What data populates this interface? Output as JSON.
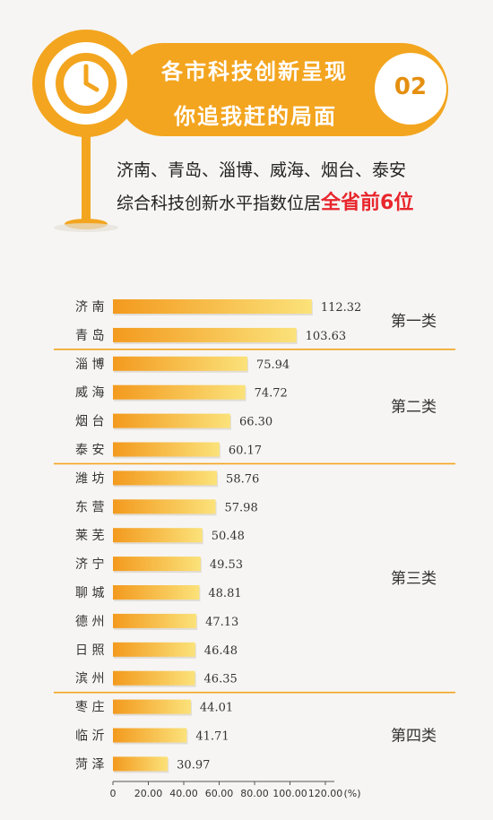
{
  "header": {
    "title_line1": "各市科技创新呈现",
    "title_line2": "你追我赶的局面",
    "number": "02",
    "subtitle_line1": "济南、青岛、淄博、威海、烟台、泰安",
    "subtitle_line2_prefix": "综合科技创新水平指数位居",
    "subtitle_line2_highlight": "全省前6位",
    "icon": "clock-icon"
  },
  "colors": {
    "accent": "#f3a51f",
    "accent_dark": "#e58f10",
    "bar_left": "#f39a1e",
    "bar_right": "#fbe27a",
    "highlight": "#e8262d"
  },
  "chart_data": {
    "type": "bar",
    "orientation": "horizontal",
    "categories": [
      "济南",
      "青岛",
      "淄博",
      "威海",
      "烟台",
      "泰安",
      "潍坊",
      "东营",
      "莱芜",
      "济宁",
      "聊城",
      "德州",
      "日照",
      "滨州",
      "枣庄",
      "临沂",
      "菏泽"
    ],
    "category_labels": [
      "济 南",
      "青 岛",
      "淄 博",
      "威 海",
      "烟 台",
      "泰 安",
      "潍 坊",
      "东 营",
      "莱 芜",
      "济 宁",
      "聊 城",
      "德 州",
      "日 照",
      "滨 州",
      "枣 庄",
      "临 沂",
      "菏 泽"
    ],
    "values": [
      112.32,
      103.63,
      75.94,
      74.72,
      66.3,
      60.17,
      58.76,
      57.98,
      50.48,
      49.53,
      48.81,
      47.13,
      46.48,
      46.35,
      44.01,
      41.71,
      30.97
    ],
    "value_labels": [
      "112.32",
      "103.63",
      "75.94",
      "74.72",
      "66.30",
      "60.17",
      "58.76",
      "57.98",
      "50.48",
      "49.53",
      "48.81",
      "47.13",
      "46.48",
      "46.35",
      "44.01",
      "41.71",
      "30.97"
    ],
    "groups": [
      {
        "name": "第一类",
        "count": 2
      },
      {
        "name": "第二类",
        "count": 4
      },
      {
        "name": "第三类",
        "count": 8
      },
      {
        "name": "第四类",
        "count": 3
      }
    ],
    "x_ticks": [
      "0",
      "20.00",
      "40.00",
      "60.00",
      "80.00",
      "100.00",
      "120.00"
    ],
    "x_unit": "(%)",
    "xlim": [
      0,
      120
    ]
  }
}
